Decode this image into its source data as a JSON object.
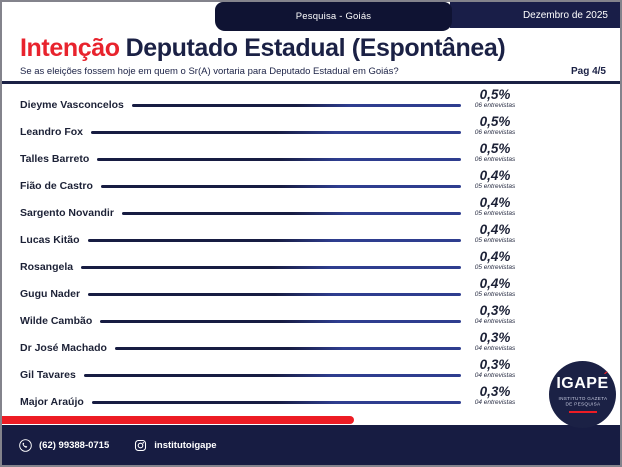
{
  "header": {
    "badge": "Pesquisa - Goiás",
    "date": "Dezembro de 2025"
  },
  "title": {
    "highlight": "Intenção",
    "rest": "Deputado Estadual (Espontânea)"
  },
  "subtitle": "Se as eleições fossem hoje em quem o Sr(A) vortaria para Deputado Estadual em Goiás?",
  "page_label": "Pag 4/5",
  "chart_data": {
    "type": "bar",
    "orientation": "horizontal",
    "title": "Intenção Deputado Estadual (Espontânea)",
    "unit": "%",
    "xlim": [
      0,
      0.5
    ],
    "categories": [
      "Dieyme Vasconcelos",
      "Leandro Fox",
      "Talles Barreto",
      "Fião de Castro",
      "Sargento Novandir",
      "Lucas Kitão",
      "Rosangela",
      "Gugu Nader",
      "Wilde Cambão",
      "Dr José Machado",
      "Gil Tavares",
      "Major Araújo"
    ],
    "values": [
      0.5,
      0.5,
      0.5,
      0.4,
      0.4,
      0.4,
      0.4,
      0.4,
      0.3,
      0.3,
      0.3,
      0.3
    ],
    "value_labels": [
      "0,5%",
      "0,5%",
      "0,5%",
      "0,4%",
      "0,4%",
      "0,4%",
      "0,4%",
      "0,4%",
      "0,3%",
      "0,3%",
      "0,3%",
      "0,3%"
    ],
    "detail_labels": [
      "06 entrevistas",
      "06 entrevistas",
      "06 entrevistas",
      "05 entrevistas",
      "05 entrevistas",
      "05 entrevistas",
      "05 entrevistas",
      "05 entrevistas",
      "04 entrevistas",
      "04 entrevistas",
      "04 entrevistas",
      "04 entrevistas"
    ]
  },
  "footer": {
    "phone": "(62) 99388-0715",
    "instagram": "institutoigape"
  },
  "logo": {
    "word": "IGAPE",
    "accent": "´",
    "caption_line1": "INSTITUTO GAZETA",
    "caption_line2": "DE PESQUISA"
  },
  "colors": {
    "navy_dark": "#0f1333",
    "navy_bar": "#191e48",
    "navy_text": "#1b2145",
    "red": "#e8232d",
    "red_bar": "#ed1c24",
    "leader_dark": "#171c42",
    "leader_light": "#2e3d8f"
  }
}
